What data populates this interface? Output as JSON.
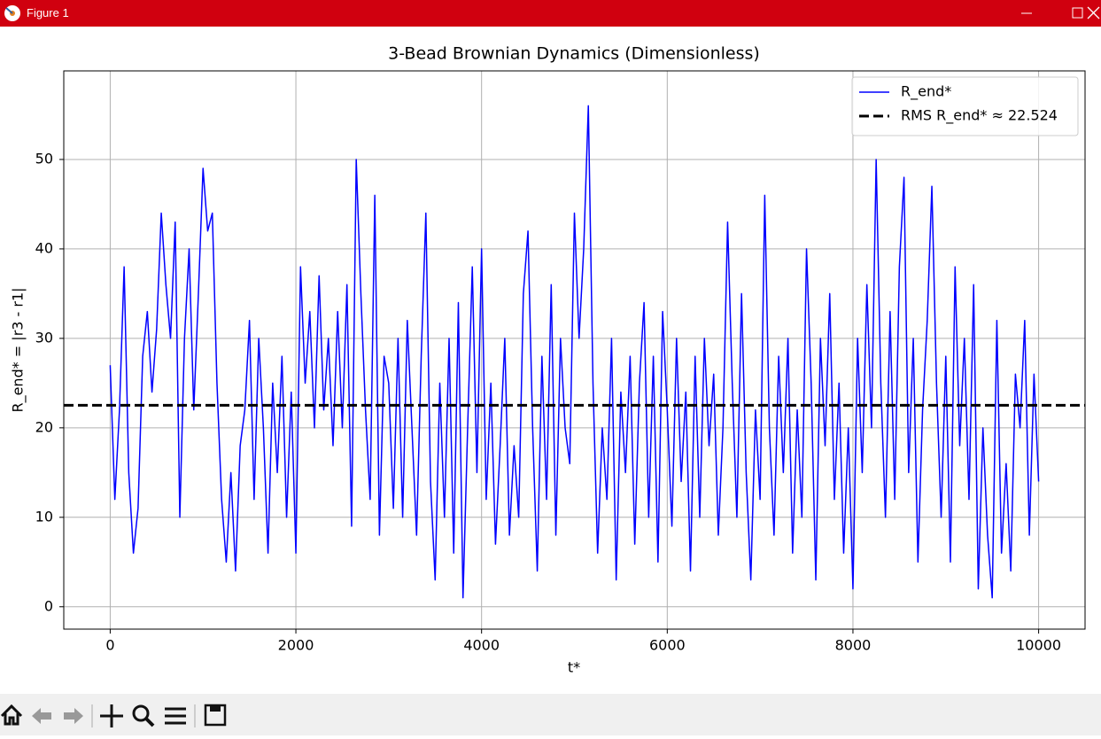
{
  "window": {
    "title": "Figure 1"
  },
  "chart_data": {
    "type": "line",
    "title": "3-Bead Brownian Dynamics (Dimensionless)",
    "xlabel": "t*",
    "ylabel": "R_end* = |r3 - r1|",
    "x": [
      0,
      50,
      100,
      150,
      200,
      250,
      300,
      350,
      400,
      450,
      500,
      550,
      600,
      650,
      700,
      750,
      800,
      850,
      900,
      950,
      1000,
      1050,
      1100,
      1150,
      1200,
      1250,
      1300,
      1350,
      1400,
      1450,
      1500,
      1550,
      1600,
      1650,
      1700,
      1750,
      1800,
      1850,
      1900,
      1950,
      2000,
      2050,
      2100,
      2150,
      2200,
      2250,
      2300,
      2350,
      2400,
      2450,
      2500,
      2550,
      2600,
      2650,
      2700,
      2750,
      2800,
      2850,
      2900,
      2950,
      3000,
      3050,
      3100,
      3150,
      3200,
      3250,
      3300,
      3350,
      3400,
      3450,
      3500,
      3550,
      3600,
      3650,
      3700,
      3750,
      3800,
      3850,
      3900,
      3950,
      4000,
      4050,
      4100,
      4150,
      4200,
      4250,
      4300,
      4350,
      4400,
      4450,
      4500,
      4550,
      4600,
      4650,
      4700,
      4750,
      4800,
      4850,
      4900,
      4950,
      5000,
      5050,
      5100,
      5150,
      5200,
      5250,
      5300,
      5350,
      5400,
      5450,
      5500,
      5550,
      5600,
      5650,
      5700,
      5750,
      5800,
      5850,
      5900,
      5950,
      6000,
      6050,
      6100,
      6150,
      6200,
      6250,
      6300,
      6350,
      6400,
      6450,
      6500,
      6550,
      6600,
      6650,
      6700,
      6750,
      6800,
      6850,
      6900,
      6950,
      7000,
      7050,
      7100,
      7150,
      7200,
      7250,
      7300,
      7350,
      7400,
      7450,
      7500,
      7550,
      7600,
      7650,
      7700,
      7750,
      7800,
      7850,
      7900,
      7950,
      8000,
      8050,
      8100,
      8150,
      8200,
      8250,
      8300,
      8350,
      8400,
      8450,
      8500,
      8550,
      8600,
      8650,
      8700,
      8750,
      8800,
      8850,
      8900,
      8950,
      9000,
      9050,
      9100,
      9150,
      9200,
      9250,
      9300,
      9350,
      9400,
      9450,
      9500,
      9550,
      9600,
      9650,
      9700,
      9750,
      9800,
      9850,
      9900,
      9950,
      10000
    ],
    "series": [
      {
        "name": "R_end*",
        "color": "#0000ff",
        "values": [
          27,
          12,
          22,
          38,
          15,
          6,
          11,
          28,
          33,
          24,
          31,
          44,
          36,
          30,
          43,
          10,
          30,
          40,
          22,
          35,
          49,
          42,
          44,
          25,
          12,
          5,
          15,
          4,
          18,
          22,
          32,
          12,
          30,
          20,
          6,
          25,
          15,
          28,
          10,
          24,
          6,
          38,
          25,
          33,
          20,
          37,
          22,
          30,
          18,
          33,
          20,
          36,
          9,
          50,
          35,
          22,
          12,
          46,
          8,
          28,
          25,
          11,
          30,
          10,
          32,
          20,
          8,
          28,
          44,
          14,
          3,
          25,
          10,
          30,
          6,
          34,
          1,
          20,
          38,
          15,
          40,
          12,
          25,
          7,
          18,
          30,
          8,
          18,
          10,
          35,
          42,
          20,
          4,
          28,
          12,
          36,
          8,
          30,
          20,
          16,
          44,
          30,
          40,
          56,
          25,
          6,
          20,
          12,
          30,
          3,
          24,
          15,
          28,
          7,
          25,
          34,
          10,
          28,
          5,
          33,
          22,
          9,
          30,
          14,
          24,
          4,
          28,
          10,
          30,
          18,
          26,
          8,
          20,
          43,
          25,
          10,
          35,
          15,
          3,
          22,
          12,
          46,
          20,
          8,
          28,
          15,
          30,
          6,
          22,
          10,
          40,
          25,
          3,
          30,
          18,
          35,
          12,
          25,
          6,
          20,
          2,
          30,
          15,
          36,
          20,
          50,
          25,
          10,
          33,
          12,
          38,
          48,
          15,
          30,
          5,
          22,
          32,
          47,
          25,
          10,
          28,
          5,
          38,
          18,
          30,
          12,
          36,
          2,
          20,
          8,
          1,
          32,
          6,
          16,
          4,
          26,
          20,
          32,
          8,
          26,
          14
        ]
      }
    ],
    "hlines": [
      {
        "name": "RMS R_end* ≈ 22.524",
        "y": 22.524,
        "color": "#000000",
        "style": "dashed"
      }
    ],
    "xlim": [
      -500,
      10500
    ],
    "ylim": [
      -2.5,
      59.9
    ],
    "xticks": [
      0,
      2000,
      4000,
      6000,
      8000,
      10000
    ],
    "yticks": [
      0,
      10,
      20,
      30,
      40,
      50
    ],
    "grid": true,
    "legend": "upper right"
  }
}
